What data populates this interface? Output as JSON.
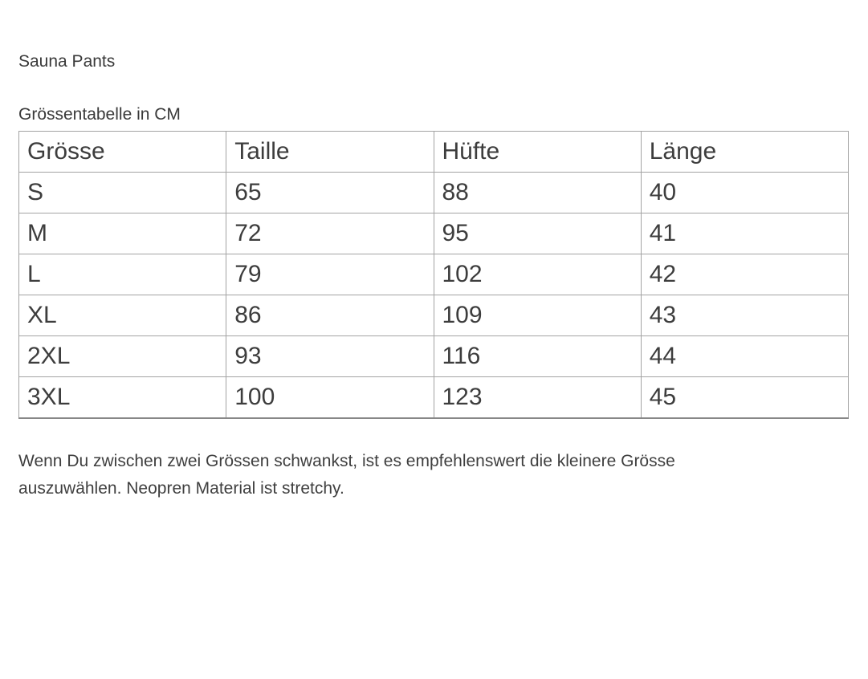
{
  "page": {
    "product_title": "Sauna Pants",
    "table_caption": "Grössentabelle in CM"
  },
  "size_table": {
    "columns": [
      "Grösse",
      "Taille",
      "Hüfte",
      "Länge"
    ],
    "rows": [
      [
        "S",
        "65",
        "88",
        "40"
      ],
      [
        "M",
        "72",
        "95",
        "41"
      ],
      [
        "L",
        "79",
        "102",
        "42"
      ],
      [
        "XL",
        "86",
        "109",
        "43"
      ],
      [
        "2XL",
        "93",
        "116",
        "44"
      ],
      [
        "3XL",
        "100",
        "123",
        "45"
      ]
    ]
  },
  "note": {
    "full_text": "Wenn Du zwischen zwei Grössen schwankst, ist es empfehlenswert die kleinere Grösse auszuwählen. Neopren Material ist stretchy.",
    "lines": [
      "Wenn Du zwischen zwei Grössen schwankst, ist es empfehlenswert die kleinere Grösse",
      "auszuwählen. Neopren Material ist stretchy."
    ]
  },
  "colors": {
    "background": "#ffffff",
    "text": "#3d3d3d",
    "table_border": "#a3a3a3",
    "table_border_bottom": "#878787"
  }
}
